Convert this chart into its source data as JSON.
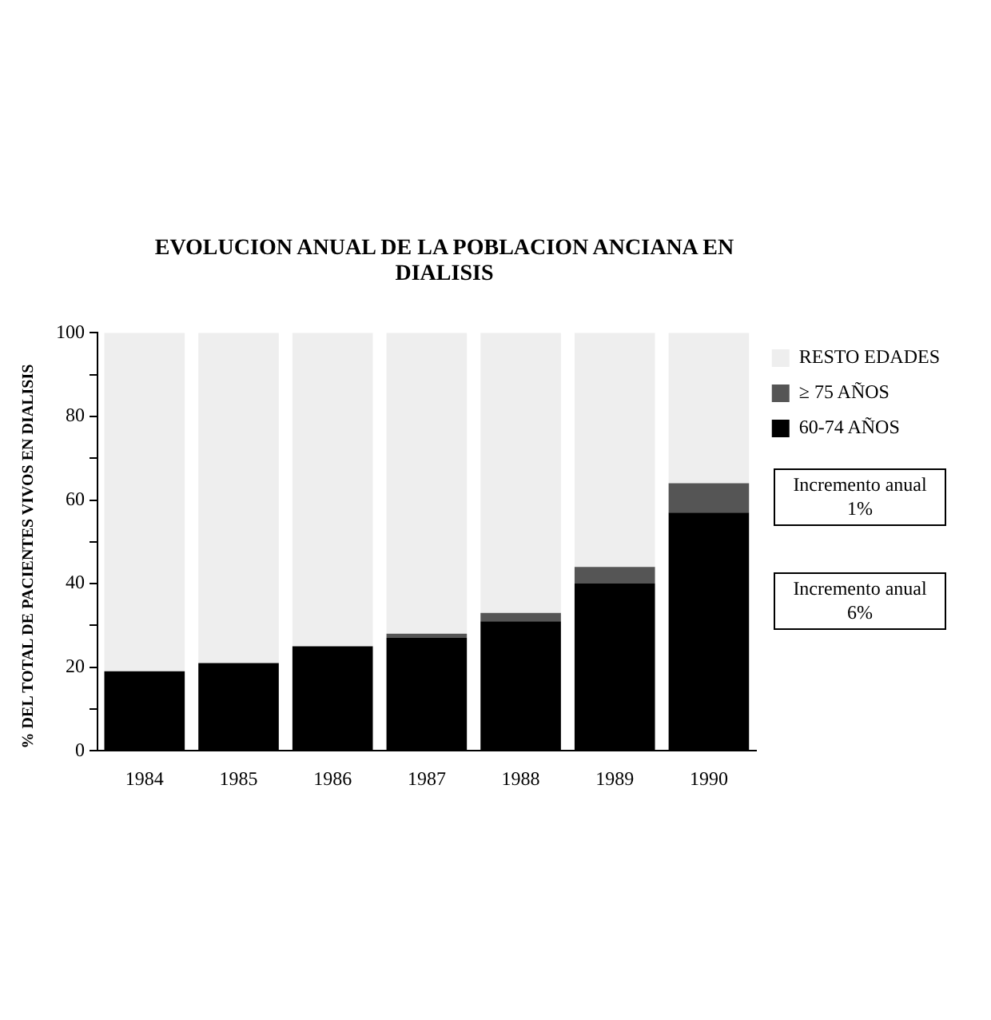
{
  "chart_data": {
    "type": "bar",
    "stacked": true,
    "title": "EVOLUCION ANUAL DE LA POBLACION ANCIANA EN DIALISIS",
    "ylabel": "% DEL TOTAL DE PACIENTES VIVOS EN DIALISIS",
    "categories": [
      "1984",
      "1985",
      "1986",
      "1987",
      "1988",
      "1989",
      "1990"
    ],
    "series": [
      {
        "name": "60-74 AÑOS",
        "color": "#000000",
        "values": [
          19,
          21,
          25,
          27,
          31,
          40,
          57
        ]
      },
      {
        "name": "≥ 75 AÑOS",
        "color": "#555555",
        "values": [
          0,
          0,
          0,
          1,
          2,
          4,
          7
        ]
      },
      {
        "name": "RESTO EDADES",
        "color": "#eeeeee",
        "values": [
          81,
          79,
          75,
          72,
          67,
          56,
          36
        ]
      }
    ],
    "ylim": [
      0,
      100
    ],
    "yticks": [
      0,
      {
        "value": 10,
        "label": null
      },
      20,
      {
        "value": 30,
        "label": null
      },
      40,
      {
        "value": 50,
        "label": null
      },
      60,
      {
        "value": 70,
        "label": null
      },
      80,
      {
        "value": 90,
        "label": null
      },
      100
    ],
    "grid": false,
    "legend": "right",
    "annotations": [
      "Incremento anual 1%",
      "Incremento anual 6%"
    ]
  }
}
